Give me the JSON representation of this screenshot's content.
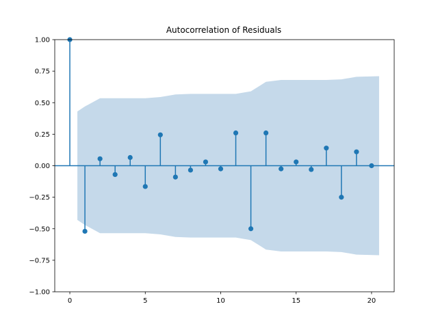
{
  "chart_data": {
    "type": "scatter",
    "title": "Autocorrelation of Residuals",
    "xlabel": "",
    "ylabel": "",
    "xlim": [
      -1,
      21.5
    ],
    "ylim": [
      -1.0,
      1.0
    ],
    "xticks": [
      0,
      5,
      10,
      15,
      20
    ],
    "yticks": [
      -1.0,
      -0.75,
      -0.5,
      -0.25,
      0.0,
      0.25,
      0.5,
      0.75,
      1.0
    ],
    "xtick_labels": [
      "0",
      "5",
      "10",
      "15",
      "20"
    ],
    "ytick_labels": [
      "−1.00",
      "−0.75",
      "−0.50",
      "−0.25",
      "0.00",
      "0.25",
      "0.50",
      "0.75",
      "1.00"
    ],
    "grid": false,
    "series": [
      {
        "lags": [
          0,
          1,
          2,
          3,
          4,
          5,
          6,
          7,
          8,
          9,
          10,
          11,
          12,
          13,
          14,
          15,
          16,
          17,
          18,
          19,
          20
        ],
        "values": [
          1.0,
          -0.52,
          0.055,
          -0.07,
          0.065,
          -0.165,
          0.245,
          -0.09,
          -0.035,
          0.03,
          -0.025,
          0.26,
          -0.5,
          0.26,
          -0.025,
          0.03,
          -0.03,
          0.14,
          -0.25,
          0.11,
          0.0
        ]
      }
    ],
    "confidence_band": {
      "x": [
        0.5,
        1,
        2,
        3,
        4,
        5,
        6,
        7,
        8,
        9,
        10,
        11,
        12,
        13,
        14,
        15,
        16,
        17,
        18,
        19,
        20.5
      ],
      "upper": [
        0.43,
        0.47,
        0.535,
        0.535,
        0.535,
        0.535,
        0.545,
        0.565,
        0.57,
        0.57,
        0.57,
        0.57,
        0.59,
        0.665,
        0.68,
        0.68,
        0.68,
        0.68,
        0.685,
        0.705,
        0.71
      ]
    },
    "colors": {
      "series": "#1f77b4",
      "band": "#c5d9ea",
      "zero_line": "#1f77b4"
    }
  }
}
